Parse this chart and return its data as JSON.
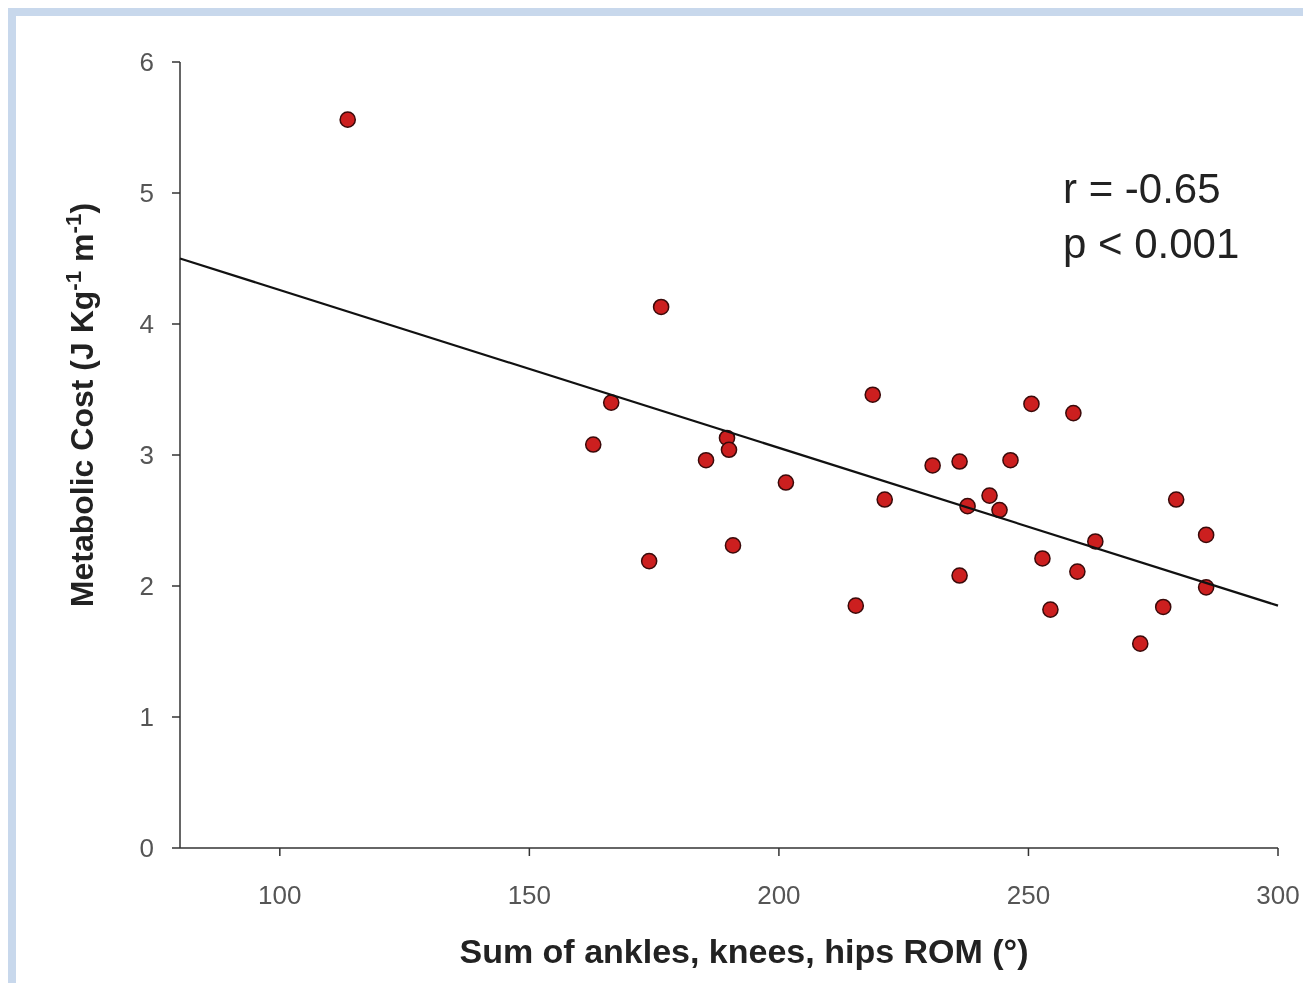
{
  "chart_data": {
    "type": "scatter",
    "xlabel": "Sum of ankles, knees, hips ROM (°)",
    "ylabel": "Metabolic Cost (J Kg$^{-1}$ m$^{-1}$)",
    "xlim": [
      80,
      300
    ],
    "ylim": [
      0,
      6
    ],
    "xticks": [
      100,
      150,
      200,
      250,
      300
    ],
    "yticks": [
      0,
      1,
      2,
      3,
      4,
      5,
      6
    ],
    "grid": false,
    "marker": "circle",
    "annotations": [
      "r = -0.65",
      "p < 0.001"
    ],
    "series": [
      {
        "color": "#cc1f1f",
        "x": [
          113.6,
          176.4,
          166.4,
          162.8,
          174,
          185.4,
          189.6,
          190,
          190.8,
          201.4,
          215.4,
          218.8,
          221.2,
          230.8,
          236.2,
          236.2,
          237.8,
          242.2,
          244.2,
          246.4,
          250.6,
          252.8,
          254.4,
          259,
          259.8,
          263.4,
          272.4,
          277,
          279.6,
          285.6,
          285.6
        ],
        "values": [
          5.56,
          4.13,
          3.4,
          3.08,
          2.19,
          2.96,
          3.13,
          3.04,
          2.31,
          2.79,
          1.85,
          3.46,
          2.66,
          2.92,
          2.95,
          2.08,
          2.61,
          2.69,
          2.58,
          2.96,
          3.39,
          2.21,
          1.82,
          3.32,
          2.11,
          2.34,
          1.56,
          1.84,
          2.66,
          2.39,
          1.99
        ]
      },
      {
        "type": "line",
        "color": "#111111",
        "x": [
          80,
          300
        ],
        "values": [
          4.5,
          1.85
        ],
        "marker": "none",
        "line_style": "solid"
      }
    ]
  }
}
